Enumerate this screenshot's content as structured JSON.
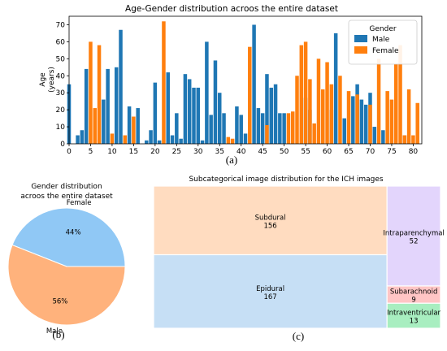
{
  "chart_data": [
    {
      "type": "bar",
      "title": "Age-Gender distribution acroos the entire dataset",
      "ylabel": "Age\n(years)",
      "xlim": [
        0,
        82
      ],
      "ylim": [
        0,
        75
      ],
      "xticks": [
        0,
        5,
        10,
        15,
        20,
        25,
        30,
        35,
        40,
        45,
        50,
        55,
        60,
        65,
        70,
        75,
        80
      ],
      "yticks": [
        0,
        10,
        20,
        30,
        40,
        50,
        60,
        70
      ],
      "legend": {
        "title": "Gender",
        "position": "top-right"
      },
      "series": [
        {
          "name": "Male",
          "color": "#1f77b4",
          "points": [
            [
              0,
              35
            ],
            [
              2,
              5
            ],
            [
              3,
              8
            ],
            [
              4,
              44
            ],
            [
              6,
              3
            ],
            [
              8,
              26
            ],
            [
              9,
              44
            ],
            [
              11,
              45
            ],
            [
              12,
              67
            ],
            [
              14,
              22
            ],
            [
              16,
              21
            ],
            [
              18,
              2
            ],
            [
              19,
              8
            ],
            [
              20,
              36
            ],
            [
              21,
              2
            ],
            [
              23,
              42
            ],
            [
              24,
              5
            ],
            [
              25,
              18
            ],
            [
              26,
              3
            ],
            [
              27,
              41
            ],
            [
              28,
              38
            ],
            [
              29,
              33
            ],
            [
              30,
              33
            ],
            [
              31,
              2
            ],
            [
              32,
              60
            ],
            [
              33,
              17
            ],
            [
              34,
              49
            ],
            [
              35,
              30
            ],
            [
              36,
              18
            ],
            [
              39,
              22
            ],
            [
              40,
              17
            ],
            [
              41,
              6
            ],
            [
              43,
              70
            ],
            [
              44,
              21
            ],
            [
              45,
              18
            ],
            [
              46,
              41
            ],
            [
              47,
              33
            ],
            [
              48,
              35
            ],
            [
              49,
              18
            ],
            [
              50,
              18
            ],
            [
              55,
              27
            ],
            [
              56,
              20
            ],
            [
              59,
              20
            ],
            [
              61,
              20
            ],
            [
              62,
              65
            ],
            [
              64,
              15
            ],
            [
              66,
              28
            ],
            [
              67,
              35
            ],
            [
              68,
              26
            ],
            [
              69,
              23
            ],
            [
              70,
              30
            ],
            [
              71,
              10
            ],
            [
              73,
              8
            ],
            [
              76,
              32
            ],
            [
              78,
              5
            ]
          ]
        },
        {
          "name": "Female",
          "color": "#ff7f0e",
          "points": [
            [
              5,
              60
            ],
            [
              6,
              21
            ],
            [
              7,
              58
            ],
            [
              10,
              6
            ],
            [
              13,
              5
            ],
            [
              15,
              16
            ],
            [
              22,
              72
            ],
            [
              37,
              4
            ],
            [
              38,
              3
            ],
            [
              42,
              57
            ],
            [
              46,
              11
            ],
            [
              51,
              18
            ],
            [
              52,
              19
            ],
            [
              53,
              40
            ],
            [
              54,
              58
            ],
            [
              55,
              60
            ],
            [
              56,
              38
            ],
            [
              57,
              12
            ],
            [
              58,
              50
            ],
            [
              59,
              32
            ],
            [
              60,
              48
            ],
            [
              61,
              35
            ],
            [
              63,
              40
            ],
            [
              65,
              31
            ],
            [
              67,
              29
            ],
            [
              70,
              23
            ],
            [
              72,
              50
            ],
            [
              74,
              31
            ],
            [
              75,
              26
            ],
            [
              76,
              47
            ],
            [
              77,
              58
            ],
            [
              78,
              5
            ],
            [
              79,
              32
            ],
            [
              80,
              5
            ],
            [
              81,
              24
            ]
          ]
        }
      ],
      "caption": "(a)"
    },
    {
      "type": "pie",
      "title": "Gender distribution\nacroos the entire dataset",
      "slices": [
        {
          "label": "Female",
          "value": 44,
          "pct_label": "44%",
          "color": "#90c8f5"
        },
        {
          "label": "Male",
          "value": 56,
          "pct_label": "56%",
          "color": "#ffb27c"
        }
      ],
      "caption": "(b)"
    },
    {
      "type": "treemap",
      "title": "Subcategorical image distribution for the ICH images",
      "items": [
        {
          "label": "Subdural",
          "value": 156,
          "color": "#ffdcc0"
        },
        {
          "label": "Epidural",
          "value": 167,
          "color": "#c6dff5"
        },
        {
          "label": "Intraparenchymal",
          "value": 52,
          "color": "#e3d5fc"
        },
        {
          "label": "Subarachnoid",
          "value": 9,
          "color": "#ffc5c5"
        },
        {
          "label": "Intraventricular",
          "value": 13,
          "color": "#a8eec0"
        }
      ],
      "caption": "(c)"
    }
  ]
}
